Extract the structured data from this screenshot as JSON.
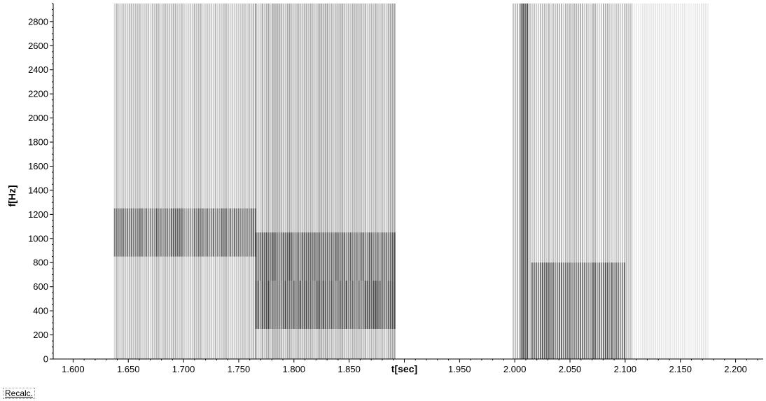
{
  "chart_data": {
    "type": "heatmap",
    "title": "",
    "xlabel": "t[sec]",
    "ylabel": "f[Hz]",
    "xlim": [
      1.582,
      2.225
    ],
    "ylim": [
      0,
      2950
    ],
    "x_ticks": [
      "1.600",
      "1.650",
      "1.700",
      "1.750",
      "1.800",
      "1.850",
      "1.900",
      "1.950",
      "2.000",
      "2.050",
      "2.100",
      "2.150",
      "2.200"
    ],
    "y_ticks": [
      "0",
      "200",
      "400",
      "600",
      "800",
      "1000",
      "1200",
      "1400",
      "1600",
      "1800",
      "2000",
      "2200",
      "2400",
      "2600",
      "2800"
    ],
    "colormap": "grayscale (white = low energy, black = high energy)",
    "energy_regions": [
      {
        "t_start": 1.637,
        "t_end": 1.765,
        "f_low": 0,
        "f_high": 2950,
        "intensity": 0.45
      },
      {
        "t_start": 1.637,
        "t_end": 1.765,
        "f_low": 850,
        "f_high": 1250,
        "intensity": 0.75
      },
      {
        "t_start": 1.765,
        "t_end": 1.892,
        "f_low": 0,
        "f_high": 2950,
        "intensity": 0.55
      },
      {
        "t_start": 1.765,
        "t_end": 1.892,
        "f_low": 250,
        "f_high": 650,
        "intensity": 0.95
      },
      {
        "t_start": 1.765,
        "t_end": 1.892,
        "f_low": 650,
        "f_high": 1050,
        "intensity": 0.8
      },
      {
        "t_start": 1.998,
        "t_end": 2.105,
        "f_low": 0,
        "f_high": 2950,
        "intensity": 0.45
      },
      {
        "t_start": 2.005,
        "t_end": 2.012,
        "f_low": 0,
        "f_high": 2950,
        "intensity": 1.0
      },
      {
        "t_start": 2.015,
        "t_end": 2.1,
        "f_low": 0,
        "f_high": 800,
        "intensity": 0.75
      },
      {
        "t_start": 2.1,
        "t_end": 2.175,
        "f_low": 0,
        "f_high": 2950,
        "intensity": 0.15
      }
    ]
  },
  "recalc_label": "Recalc."
}
